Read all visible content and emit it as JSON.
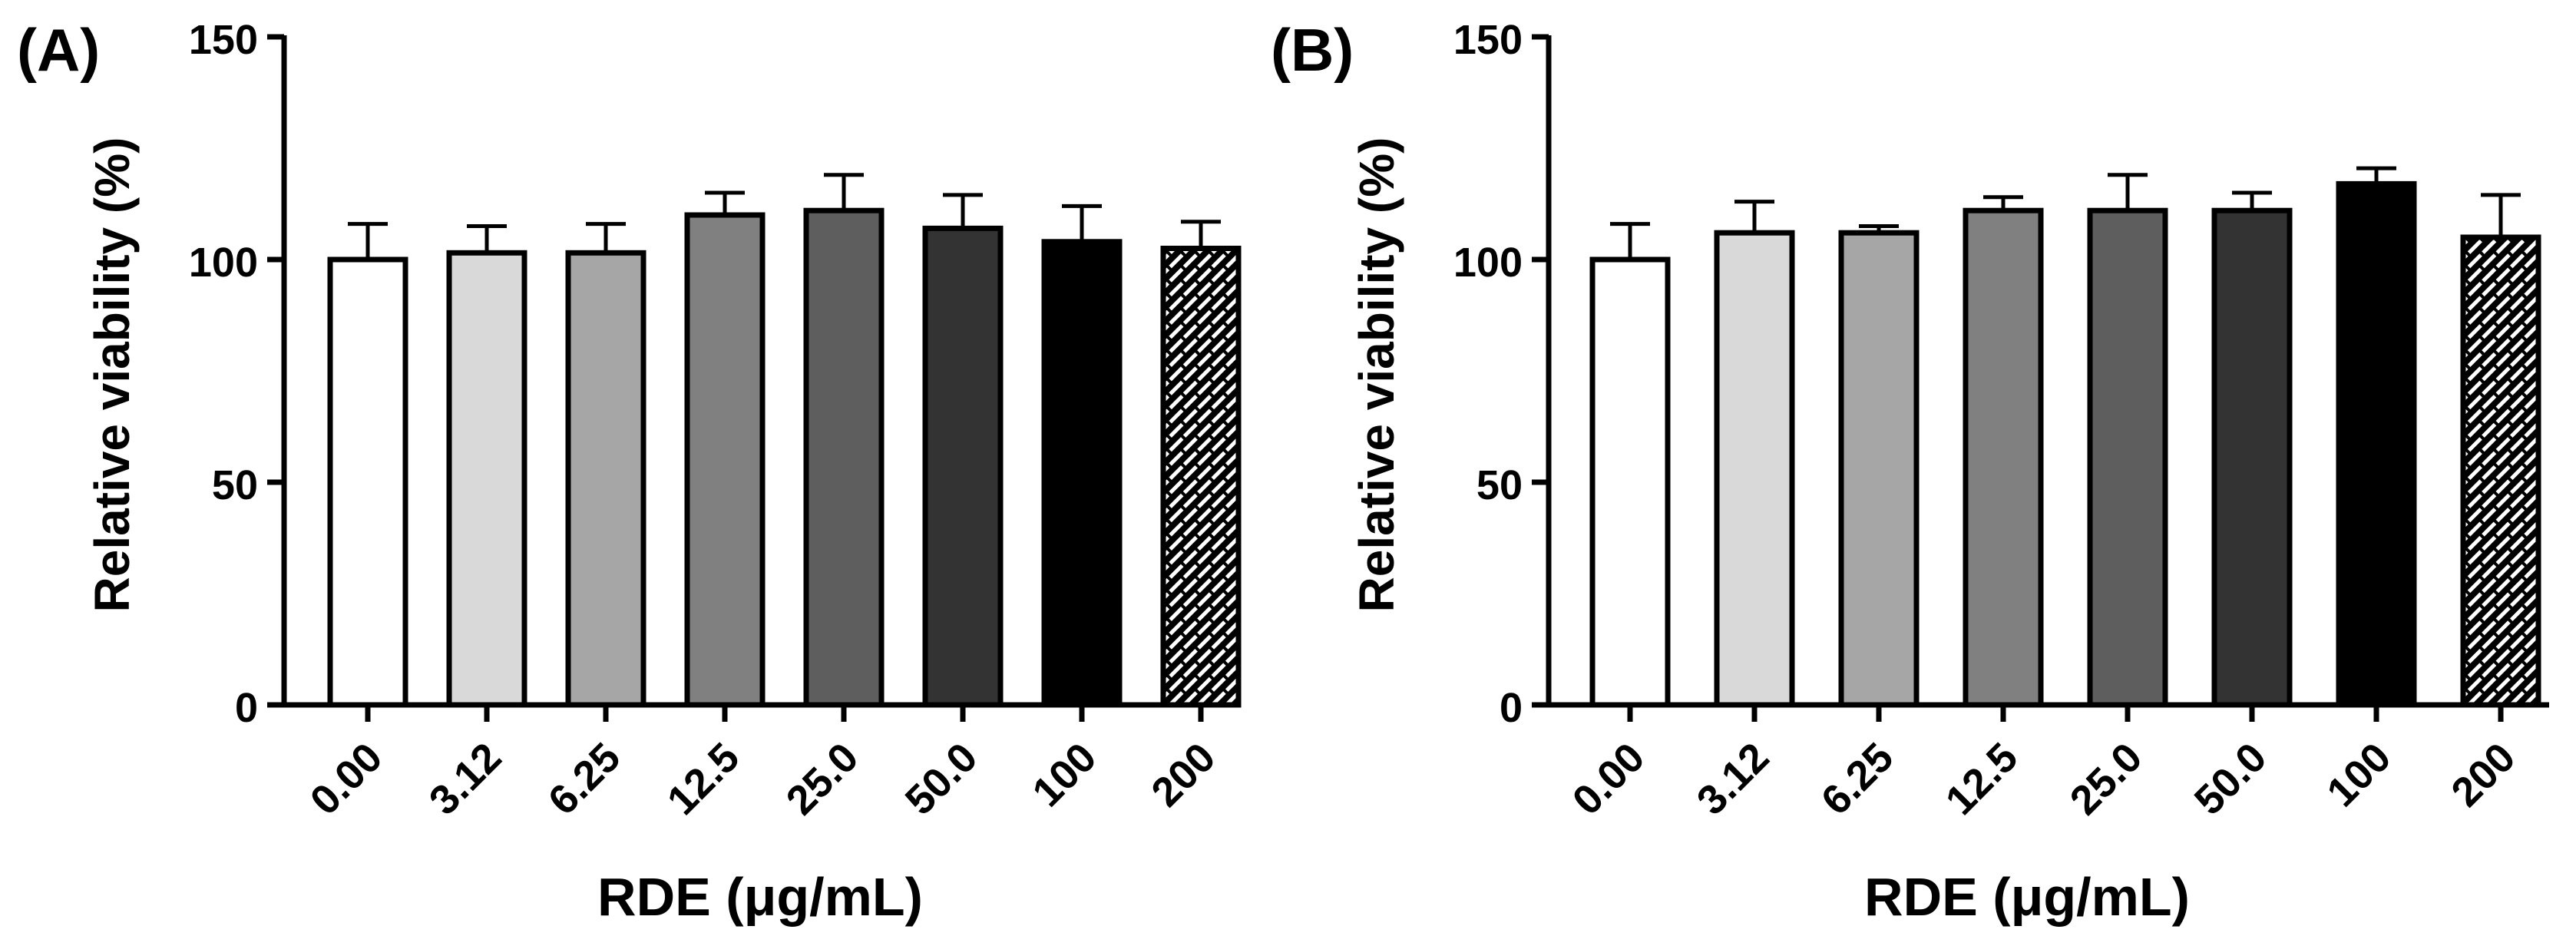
{
  "chart_data": [
    {
      "type": "bar",
      "panel_label": "(A)",
      "categories": [
        "0.00",
        "3.12",
        "6.25",
        "12.5",
        "25.0",
        "50.0",
        "100",
        "200"
      ],
      "values": [
        100,
        101.5,
        101.5,
        110,
        111,
        107,
        104,
        102.5
      ],
      "errors": [
        8,
        6,
        6.5,
        5,
        8,
        7.5,
        8,
        6
      ],
      "bar_colors": [
        "#ffffff",
        "#d9d9d9",
        "#a6a6a6",
        "#808080",
        "#5e5e5e",
        "#333333",
        "#000000",
        "pattern"
      ],
      "xlabel": "RDE (μg/mL)",
      "ylabel": "Relative viability (%)",
      "ylim": [
        0,
        150
      ],
      "yticks": [
        "0",
        "50",
        "100",
        "150"
      ]
    },
    {
      "type": "bar",
      "panel_label": "(B)",
      "categories": [
        "0.00",
        "3.12",
        "6.25",
        "12.5",
        "25.0",
        "50.0",
        "100",
        "200"
      ],
      "values": [
        100,
        106,
        106,
        111,
        111,
        111,
        117,
        105
      ],
      "errors": [
        8,
        7,
        1.5,
        3,
        8,
        4,
        3.5,
        9.5
      ],
      "bar_colors": [
        "#ffffff",
        "#d9d9d9",
        "#a6a6a6",
        "#808080",
        "#5e5e5e",
        "#333333",
        "#000000",
        "pattern"
      ],
      "xlabel": "RDE (μg/mL)",
      "ylabel": "Relative viability (%)",
      "ylim": [
        0,
        150
      ],
      "yticks": [
        "0",
        "50",
        "100",
        "150"
      ]
    }
  ]
}
